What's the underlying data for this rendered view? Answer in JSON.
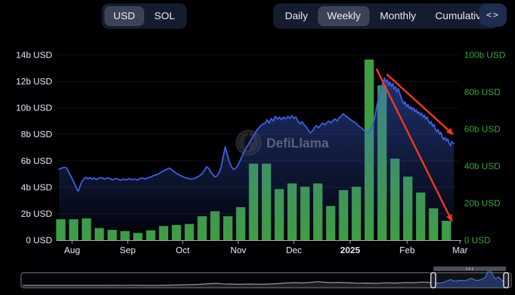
{
  "header": {
    "currency_toggle": {
      "options": [
        "USD",
        "SOL"
      ],
      "selected": "USD"
    },
    "interval_tabs": {
      "options": [
        "Daily",
        "Weekly",
        "Monthly",
        "Cumulative"
      ],
      "selected": "Weekly"
    },
    "embed_button": {
      "glyph": "<>"
    }
  },
  "watermark": {
    "text": "DefiLlama"
  },
  "colors": {
    "background": "#000003",
    "bar_green": "#3f9e41",
    "line_blue": "#3f5dd8",
    "area_blue": "#3e63dd",
    "left_axis_text": "#e9ebf0",
    "right_axis_text": "#35a535",
    "annotation_red": "#f2391f",
    "group_bg": "#151c2e",
    "selected_pill_bg": "#3c4358",
    "embed_btn_bg": "#1e2c4e",
    "grid_line": "rgba(255,255,255,0.08)",
    "axis_line": "#b8bcc4"
  },
  "chart_data": {
    "type": "combo",
    "title": "",
    "left_axis": {
      "unit": "USD",
      "max_b": 14,
      "ticks": [
        "0 USD",
        "2b USD",
        "4b USD",
        "6b USD",
        "8b USD",
        "10b USD",
        "12b USD",
        "14b USD"
      ]
    },
    "right_axis": {
      "unit": "USD",
      "max_b": 100,
      "ticks": [
        "0 USD",
        "20b USD",
        "40b USD",
        "60b USD",
        "80b USD",
        "100b USD"
      ]
    },
    "x_axis": {
      "labels": [
        {
          "label": "Aug",
          "x": 105
        },
        {
          "label": "Sep",
          "x": 186
        },
        {
          "label": "Oct",
          "x": 266
        },
        {
          "label": "Nov",
          "x": 347
        },
        {
          "label": "Dec",
          "x": 428
        },
        {
          "label": "2025",
          "x": 510,
          "bold": true
        },
        {
          "label": "Feb",
          "x": 593
        },
        {
          "label": "Mar",
          "x": 670
        }
      ]
    },
    "series": [
      {
        "name": "weekly-volume",
        "type": "bar",
        "axis": "right",
        "unit": "b USD",
        "values": [
          11.3,
          11.3,
          11.7,
          6.5,
          5.5,
          4.9,
          3.9,
          5.3,
          7.6,
          8.2,
          8.7,
          12.9,
          15.6,
          12.9,
          17.8,
          41.3,
          41.3,
          27.6,
          30.6,
          28.8,
          30.6,
          18.4,
          27.0,
          28.8,
          97.5,
          83.5,
          44.0,
          34.3,
          25.7,
          17.2,
          10.4
        ]
      },
      {
        "name": "overlay-line",
        "type": "line",
        "axis": "left",
        "unit": "b USD",
        "points": [
          [
            86,
            5.35
          ],
          [
            90,
            5.45
          ],
          [
            94,
            5.5
          ],
          [
            97,
            5.45
          ],
          [
            100,
            5.15
          ],
          [
            103,
            4.85
          ],
          [
            106,
            4.55
          ],
          [
            109,
            4.2
          ],
          [
            112,
            3.85
          ],
          [
            114,
            3.7
          ],
          [
            116,
            4.0
          ],
          [
            119,
            4.4
          ],
          [
            122,
            4.6
          ],
          [
            125,
            4.75
          ],
          [
            128,
            4.62
          ],
          [
            131,
            4.74
          ],
          [
            134,
            4.6
          ],
          [
            137,
            4.7
          ],
          [
            140,
            4.58
          ],
          [
            144,
            4.68
          ],
          [
            148,
            4.72
          ],
          [
            152,
            4.6
          ],
          [
            156,
            4.7
          ],
          [
            160,
            4.65
          ],
          [
            164,
            4.55
          ],
          [
            168,
            4.66
          ],
          [
            172,
            4.6
          ],
          [
            176,
            4.52
          ],
          [
            180,
            4.62
          ],
          [
            184,
            4.55
          ],
          [
            188,
            4.65
          ],
          [
            192,
            4.56
          ],
          [
            196,
            4.62
          ],
          [
            200,
            4.55
          ],
          [
            204,
            4.65
          ],
          [
            208,
            4.7
          ],
          [
            212,
            4.62
          ],
          [
            216,
            4.72
          ],
          [
            220,
            4.78
          ],
          [
            224,
            4.88
          ],
          [
            228,
            4.95
          ],
          [
            232,
            5.05
          ],
          [
            236,
            5.18
          ],
          [
            240,
            5.28
          ],
          [
            244,
            5.38
          ],
          [
            247,
            5.44
          ],
          [
            250,
            5.32
          ],
          [
            254,
            5.15
          ],
          [
            258,
            5.02
          ],
          [
            262,
            4.9
          ],
          [
            266,
            4.8
          ],
          [
            270,
            4.72
          ],
          [
            274,
            4.66
          ],
          [
            278,
            4.6
          ],
          [
            282,
            4.65
          ],
          [
            286,
            4.72
          ],
          [
            290,
            4.85
          ],
          [
            294,
            5.0
          ],
          [
            298,
            5.3
          ],
          [
            301,
            5.55
          ],
          [
            304,
            5.42
          ],
          [
            307,
            5.15
          ],
          [
            310,
            4.95
          ],
          [
            313,
            4.78
          ],
          [
            316,
            4.85
          ],
          [
            319,
            5.1
          ],
          [
            322,
            5.5
          ],
          [
            325,
            6.3
          ],
          [
            328,
            7.05
          ],
          [
            331,
            6.5
          ],
          [
            334,
            5.9
          ],
          [
            337,
            5.55
          ],
          [
            340,
            5.35
          ],
          [
            343,
            5.42
          ],
          [
            346,
            5.6
          ],
          [
            350,
            6.05
          ],
          [
            354,
            6.5
          ],
          [
            358,
            6.95
          ],
          [
            362,
            7.25
          ],
          [
            366,
            7.6
          ],
          [
            370,
            7.95
          ],
          [
            374,
            8.3
          ],
          [
            378,
            8.55
          ],
          [
            382,
            8.75
          ],
          [
            386,
            8.85
          ],
          [
            389,
            9.1
          ],
          [
            392,
            8.85
          ],
          [
            395,
            9.2
          ],
          [
            398,
            9.0
          ],
          [
            401,
            9.35
          ],
          [
            404,
            9.15
          ],
          [
            407,
            9.3
          ],
          [
            410,
            9.1
          ],
          [
            413,
            9.3
          ],
          [
            416,
            9.15
          ],
          [
            419,
            9.35
          ],
          [
            422,
            9.2
          ],
          [
            425,
            9.4
          ],
          [
            428,
            9.2
          ],
          [
            431,
            9.3
          ],
          [
            434,
            9.0
          ],
          [
            437,
            8.8
          ],
          [
            440,
            8.95
          ],
          [
            443,
            8.7
          ],
          [
            446,
            8.55
          ],
          [
            449,
            8.3
          ],
          [
            452,
            8.1
          ],
          [
            455,
            8.25
          ],
          [
            458,
            8.5
          ],
          [
            461,
            8.65
          ],
          [
            464,
            8.5
          ],
          [
            467,
            8.7
          ],
          [
            470,
            8.85
          ],
          [
            473,
            8.7
          ],
          [
            476,
            8.9
          ],
          [
            479,
            9.0
          ],
          [
            482,
            8.85
          ],
          [
            485,
            9.05
          ],
          [
            488,
            9.15
          ],
          [
            491,
            9.0
          ],
          [
            494,
            9.25
          ],
          [
            497,
            9.4
          ],
          [
            500,
            9.55
          ],
          [
            503,
            9.4
          ],
          [
            506,
            9.3
          ],
          [
            509,
            9.15
          ],
          [
            512,
            9.05
          ],
          [
            515,
            8.95
          ],
          [
            518,
            8.85
          ],
          [
            521,
            8.7
          ],
          [
            524,
            8.55
          ],
          [
            527,
            8.45
          ],
          [
            530,
            8.3
          ],
          [
            533,
            8.15
          ],
          [
            536,
            8.1
          ],
          [
            539,
            8.3
          ],
          [
            542,
            8.6
          ],
          [
            545,
            9.1
          ],
          [
            548,
            9.9
          ],
          [
            551,
            10.7
          ],
          [
            554,
            11.35
          ],
          [
            557,
            11.8
          ],
          [
            560,
            12.25
          ],
          [
            562,
            11.9
          ],
          [
            564,
            12.1
          ],
          [
            566,
            11.7
          ],
          [
            568,
            11.95
          ],
          [
            570,
            11.6
          ],
          [
            572,
            11.85
          ],
          [
            574,
            11.4
          ],
          [
            576,
            11.6
          ],
          [
            578,
            11.2
          ],
          [
            580,
            11.45
          ],
          [
            582,
            11.1
          ],
          [
            584,
            10.8
          ],
          [
            586,
            10.55
          ],
          [
            588,
            10.3
          ],
          [
            590,
            10.45
          ],
          [
            592,
            10.1
          ],
          [
            594,
            10.25
          ],
          [
            596,
            9.95
          ],
          [
            598,
            10.1
          ],
          [
            600,
            9.85
          ],
          [
            602,
            10.0
          ],
          [
            604,
            9.7
          ],
          [
            606,
            9.85
          ],
          [
            608,
            9.6
          ],
          [
            610,
            9.7
          ],
          [
            612,
            9.45
          ],
          [
            614,
            9.6
          ],
          [
            616,
            9.3
          ],
          [
            618,
            9.45
          ],
          [
            620,
            9.15
          ],
          [
            622,
            9.3
          ],
          [
            624,
            9.0
          ],
          [
            626,
            8.8
          ],
          [
            628,
            8.95
          ],
          [
            630,
            8.6
          ],
          [
            632,
            8.75
          ],
          [
            634,
            8.4
          ],
          [
            636,
            8.2
          ],
          [
            638,
            8.35
          ],
          [
            640,
            8.0
          ],
          [
            642,
            8.15
          ],
          [
            644,
            7.8
          ],
          [
            646,
            7.6
          ],
          [
            648,
            7.75
          ],
          [
            650,
            7.5
          ],
          [
            652,
            7.65
          ],
          [
            654,
            7.35
          ],
          [
            656,
            7.15
          ],
          [
            658,
            7.45
          ],
          [
            661,
            7.3
          ]
        ]
      }
    ],
    "annotations": [
      {
        "name": "decline-arrow-steep",
        "type": "arrow",
        "from": [
          548,
          100
        ],
        "to": [
          659,
          324
        ]
      },
      {
        "name": "decline-arrow-shallow",
        "type": "arrow",
        "from": [
          563,
          108
        ],
        "to": [
          661,
          197
        ]
      }
    ]
  },
  "brush": {
    "selection": [
      631,
      737
    ],
    "profile": [
      [
        33,
        3
      ],
      [
        70,
        3
      ],
      [
        110,
        3
      ],
      [
        150,
        3
      ],
      [
        190,
        3.2
      ],
      [
        230,
        3
      ],
      [
        260,
        3.6
      ],
      [
        290,
        4.5
      ],
      [
        305,
        5.5
      ],
      [
        315,
        6
      ],
      [
        325,
        5.2
      ],
      [
        335,
        5
      ],
      [
        348,
        4.6
      ],
      [
        362,
        5
      ],
      [
        376,
        4.6
      ],
      [
        390,
        5
      ],
      [
        404,
        5.6
      ],
      [
        418,
        6.6
      ],
      [
        430,
        7
      ],
      [
        442,
        6.6
      ],
      [
        452,
        7.4
      ],
      [
        462,
        8.4
      ],
      [
        472,
        7.6
      ],
      [
        482,
        7
      ],
      [
        492,
        7.4
      ],
      [
        502,
        7
      ],
      [
        512,
        6.6
      ],
      [
        522,
        6.2
      ],
      [
        535,
        6.4
      ],
      [
        548,
        6
      ],
      [
        562,
        6.8
      ],
      [
        576,
        6.4
      ],
      [
        590,
        7.2
      ],
      [
        602,
        7
      ],
      [
        614,
        7.8
      ],
      [
        624,
        7.4
      ],
      [
        631,
        7
      ],
      [
        640,
        6.2
      ],
      [
        648,
        8.2
      ],
      [
        656,
        11.5
      ],
      [
        663,
        9
      ],
      [
        670,
        10.5
      ],
      [
        678,
        9.8
      ],
      [
        686,
        13.5
      ],
      [
        694,
        10
      ],
      [
        701,
        11.5
      ],
      [
        707,
        15
      ],
      [
        711,
        24
      ],
      [
        714,
        27
      ],
      [
        717,
        19
      ],
      [
        721,
        13
      ],
      [
        726,
        15
      ],
      [
        731,
        10.5
      ],
      [
        736,
        6.5
      ],
      [
        740,
        4.5
      ]
    ]
  }
}
